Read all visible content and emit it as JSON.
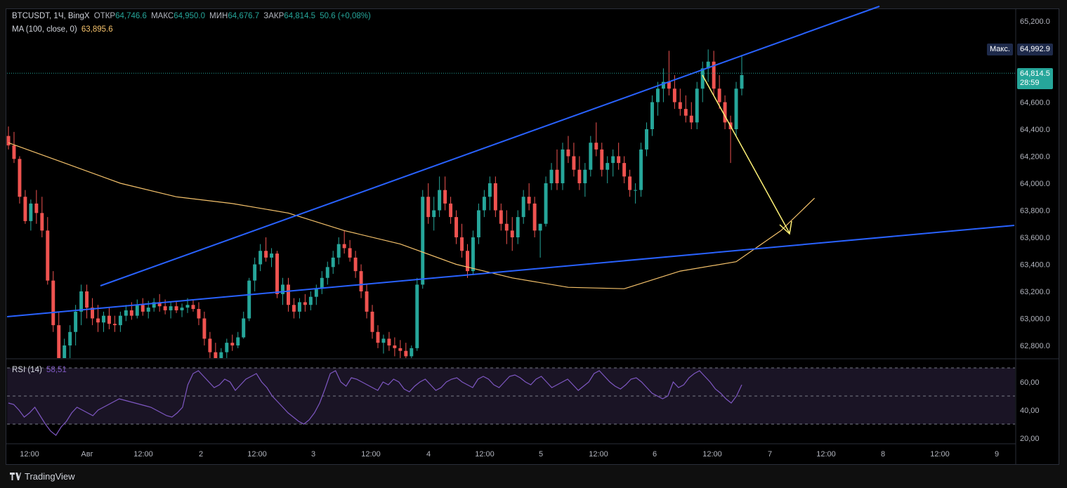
{
  "header": {
    "symbol": "BTCUSDT, 1Ч, BingX",
    "open_label": "ОТКР",
    "open": "64,746.6",
    "high_label": "МАКС",
    "high": "64,950.0",
    "low_label": "МИН",
    "low": "64,676.7",
    "close_label": "ЗАКР",
    "close": "64,814.5",
    "change": "50.6 (+0,08%)"
  },
  "ma_legend": {
    "label": "MA (100, close, 0)",
    "value": "63,895.6"
  },
  "rsi_legend": {
    "label": "RSI (14)",
    "value": "58,51"
  },
  "price_badges": {
    "max_label": "Макс.",
    "max_value": "64,992.9",
    "last_value": "64,814.5",
    "countdown": "28:59"
  },
  "footer": {
    "brand": "TradingView"
  },
  "colors": {
    "up": "#26a69a",
    "down": "#ef5350",
    "ma": "#f5c26b",
    "trendline": "#2962ff",
    "arrow": "#fff176",
    "rsi": "#7e57c2",
    "bg": "#000000"
  },
  "chart_data": {
    "type": "candlestick",
    "price_axis": {
      "ticks": [
        "65,200.0",
        "64,800.0",
        "64,600.0",
        "64,400.0",
        "64,200.0",
        "64,000.0",
        "63,800.0",
        "63,600.0",
        "63,400.0",
        "63,200.0",
        "63,000.0",
        "62,800.0"
      ],
      "range": [
        62700,
        65300
      ]
    },
    "time_axis": {
      "ticks": [
        "12:00",
        "Авг",
        "12:00",
        "2",
        "12:00",
        "3",
        "12:00",
        "4",
        "12:00",
        "5",
        "12:00",
        "6",
        "12:00",
        "7",
        "12:00",
        "8",
        "12:00",
        "9"
      ]
    },
    "candles": [
      [
        64350,
        64420,
        64250,
        64280
      ],
      [
        64280,
        64380,
        64150,
        64180
      ],
      [
        64180,
        64200,
        63850,
        63900
      ],
      [
        63900,
        63950,
        63700,
        63720
      ],
      [
        63720,
        63880,
        63650,
        63850
      ],
      [
        63850,
        63950,
        63700,
        63780
      ],
      [
        63780,
        63900,
        63600,
        63650
      ],
      [
        63650,
        63750,
        63250,
        63280
      ],
      [
        63280,
        63350,
        62900,
        62950
      ],
      [
        62950,
        63050,
        62650,
        62700
      ],
      [
        62700,
        62850,
        62600,
        62800
      ],
      [
        62800,
        62950,
        62700,
        62900
      ],
      [
        62900,
        63100,
        62800,
        63050
      ],
      [
        63050,
        63250,
        62950,
        63200
      ],
      [
        63200,
        63250,
        63000,
        63080
      ],
      [
        63080,
        63150,
        62950,
        63000
      ],
      [
        63000,
        63100,
        62900,
        62970
      ],
      [
        62970,
        63050,
        62900,
        63020
      ],
      [
        63020,
        63080,
        62920,
        62960
      ],
      [
        62960,
        63020,
        62900,
        62950
      ],
      [
        62950,
        63050,
        62900,
        63020
      ],
      [
        63020,
        63100,
        62980,
        63060
      ],
      [
        63060,
        63120,
        62990,
        63020
      ],
      [
        63020,
        63140,
        63000,
        63100
      ],
      [
        63100,
        63150,
        63020,
        63050
      ],
      [
        63050,
        63130,
        63000,
        63080
      ],
      [
        63080,
        63150,
        63050,
        63120
      ],
      [
        63120,
        63180,
        63050,
        63090
      ],
      [
        63090,
        63140,
        63030,
        63060
      ],
      [
        63060,
        63120,
        63000,
        63090
      ],
      [
        63090,
        63130,
        63040,
        63060
      ],
      [
        63060,
        63110,
        63010,
        63080
      ],
      [
        63080,
        63150,
        63040,
        63100
      ],
      [
        63100,
        63140,
        63050,
        63070
      ],
      [
        63070,
        63120,
        62950,
        63000
      ],
      [
        63000,
        63050,
        62800,
        62850
      ],
      [
        62850,
        62900,
        62700,
        62750
      ],
      [
        62750,
        62820,
        62650,
        62700
      ],
      [
        62700,
        62780,
        62600,
        62750
      ],
      [
        62750,
        62850,
        62700,
        62820
      ],
      [
        62820,
        62880,
        62760,
        62800
      ],
      [
        62800,
        62900,
        62780,
        62860
      ],
      [
        62860,
        63050,
        62850,
        63000
      ],
      [
        63000,
        63300,
        62980,
        63280
      ],
      [
        63280,
        63450,
        63200,
        63400
      ],
      [
        63400,
        63550,
        63350,
        63500
      ],
      [
        63500,
        63600,
        63420,
        63450
      ],
      [
        63450,
        63520,
        63380,
        63480
      ],
      [
        63480,
        63500,
        63150,
        63180
      ],
      [
        63180,
        63300,
        63100,
        63250
      ],
      [
        63250,
        63300,
        63050,
        63100
      ],
      [
        63100,
        63150,
        63000,
        63050
      ],
      [
        63050,
        63150,
        63000,
        63120
      ],
      [
        63120,
        63180,
        63050,
        63100
      ],
      [
        63100,
        63200,
        63060,
        63160
      ],
      [
        63160,
        63250,
        63100,
        63220
      ],
      [
        63220,
        63350,
        63180,
        63300
      ],
      [
        63300,
        63420,
        63250,
        63380
      ],
      [
        63380,
        63500,
        63330,
        63450
      ],
      [
        63450,
        63600,
        63400,
        63550
      ],
      [
        63550,
        63650,
        63480,
        63520
      ],
      [
        63520,
        63580,
        63420,
        63450
      ],
      [
        63450,
        63500,
        63300,
        63350
      ],
      [
        63350,
        63400,
        63150,
        63200
      ],
      [
        63200,
        63250,
        63000,
        63050
      ],
      [
        63050,
        63100,
        62850,
        62900
      ],
      [
        62900,
        62950,
        62780,
        62820
      ],
      [
        62820,
        62880,
        62740,
        62850
      ],
      [
        62850,
        62900,
        62760,
        62800
      ],
      [
        62800,
        62860,
        62720,
        62780
      ],
      [
        62780,
        62840,
        62700,
        62760
      ],
      [
        62760,
        62820,
        62690,
        62720
      ],
      [
        62720,
        62800,
        62680,
        62780
      ],
      [
        62780,
        63300,
        62760,
        63250
      ],
      [
        63250,
        63950,
        63220,
        63900
      ],
      [
        63900,
        64000,
        63700,
        63750
      ],
      [
        63750,
        63900,
        63650,
        63800
      ],
      [
        63800,
        64050,
        63750,
        63950
      ],
      [
        63950,
        64050,
        63800,
        63850
      ],
      [
        63850,
        63900,
        63700,
        63750
      ],
      [
        63750,
        63800,
        63550,
        63600
      ],
      [
        63600,
        63700,
        63450,
        63500
      ],
      [
        63500,
        63550,
        63300,
        63350
      ],
      [
        63350,
        63650,
        63320,
        63600
      ],
      [
        63600,
        63850,
        63550,
        63800
      ],
      [
        63800,
        63950,
        63750,
        63900
      ],
      [
        63900,
        64050,
        63800,
        64000
      ],
      [
        64000,
        64050,
        63750,
        63800
      ],
      [
        63800,
        63850,
        63650,
        63700
      ],
      [
        63700,
        63800,
        63550,
        63650
      ],
      [
        63650,
        63750,
        63500,
        63600
      ],
      [
        63600,
        63800,
        63550,
        63750
      ],
      [
        63750,
        63950,
        63700,
        63900
      ],
      [
        63900,
        64000,
        63800,
        63850
      ],
      [
        63850,
        63900,
        63600,
        63650
      ],
      [
        63650,
        63700,
        63450,
        63700
      ],
      [
        63700,
        64050,
        63680,
        64000
      ],
      [
        64000,
        64150,
        63950,
        64100
      ],
      [
        64100,
        64250,
        63950,
        64000
      ],
      [
        64000,
        64300,
        63950,
        64250
      ],
      [
        64250,
        64350,
        64150,
        64200
      ],
      [
        64200,
        64300,
        64050,
        64100
      ],
      [
        64100,
        64200,
        63950,
        64000
      ],
      [
        64000,
        64150,
        63900,
        64100
      ],
      [
        64100,
        64350,
        64050,
        64300
      ],
      [
        64300,
        64450,
        64200,
        64250
      ],
      [
        64250,
        64300,
        64050,
        64100
      ],
      [
        64100,
        64200,
        64000,
        64150
      ],
      [
        64150,
        64250,
        64050,
        64200
      ],
      [
        64200,
        64300,
        64100,
        64150
      ],
      [
        64150,
        64200,
        64000,
        64050
      ],
      [
        64050,
        64100,
        63900,
        63950
      ],
      [
        63950,
        64000,
        63850,
        63950
      ],
      [
        63950,
        64300,
        63900,
        64250
      ],
      [
        64250,
        64450,
        64200,
        64400
      ],
      [
        64400,
        64650,
        64350,
        64600
      ],
      [
        64600,
        64750,
        64500,
        64700
      ],
      [
        64700,
        64850,
        64600,
        64750
      ],
      [
        64750,
        64980,
        64650,
        64700
      ],
      [
        64700,
        64800,
        64550,
        64600
      ],
      [
        64600,
        64700,
        64500,
        64550
      ],
      [
        64550,
        64650,
        64450,
        64500
      ],
      [
        64500,
        64600,
        64400,
        64450
      ],
      [
        64450,
        64750,
        64400,
        64700
      ],
      [
        64700,
        64900,
        64600,
        64850
      ],
      [
        64850,
        64990,
        64750,
        64900
      ],
      [
        64900,
        64980,
        64650,
        64700
      ],
      [
        64700,
        64800,
        64550,
        64600
      ],
      [
        64600,
        64650,
        64400,
        64450
      ],
      [
        64450,
        64500,
        64150,
        64400
      ],
      [
        64400,
        64750,
        64350,
        64700
      ],
      [
        64700,
        64950,
        64650,
        64800
      ]
    ],
    "ma100": [
      [
        0,
        64300
      ],
      [
        10,
        64150
      ],
      [
        20,
        64000
      ],
      [
        30,
        63900
      ],
      [
        40,
        63850
      ],
      [
        50,
        63780
      ],
      [
        60,
        63650
      ],
      [
        70,
        63550
      ],
      [
        80,
        63400
      ],
      [
        90,
        63300
      ],
      [
        100,
        63230
      ],
      [
        110,
        63220
      ],
      [
        120,
        63350
      ],
      [
        130,
        63420
      ],
      [
        138,
        63650
      ],
      [
        144,
        63890
      ]
    ],
    "rsi": [
      45,
      44,
      40,
      35,
      38,
      42,
      36,
      30,
      25,
      22,
      28,
      32,
      38,
      42,
      40,
      38,
      36,
      40,
      42,
      44,
      46,
      48,
      47,
      46,
      45,
      44,
      43,
      42,
      40,
      38,
      36,
      35,
      38,
      42,
      58,
      66,
      68,
      64,
      60,
      56,
      58,
      62,
      60,
      54,
      58,
      62,
      64,
      66,
      60,
      56,
      50,
      46,
      42,
      38,
      35,
      32,
      30,
      33,
      38,
      45,
      55,
      66,
      68,
      60,
      57,
      63,
      62,
      60,
      58,
      56,
      54,
      60,
      58,
      62,
      60,
      55,
      53,
      57,
      60,
      62,
      58,
      54,
      56,
      60,
      62,
      63,
      60,
      58,
      56,
      62,
      64,
      62,
      58,
      56,
      60,
      64,
      65,
      63,
      60,
      58,
      62,
      64,
      60,
      56,
      58,
      60,
      62,
      58,
      54,
      57,
      60,
      66,
      68,
      64,
      60,
      57,
      55,
      58,
      62,
      63,
      60,
      56,
      52,
      50,
      48,
      50,
      60,
      56,
      58,
      63,
      66,
      68,
      64,
      60,
      55,
      52,
      48,
      45,
      50,
      58
    ]
  }
}
